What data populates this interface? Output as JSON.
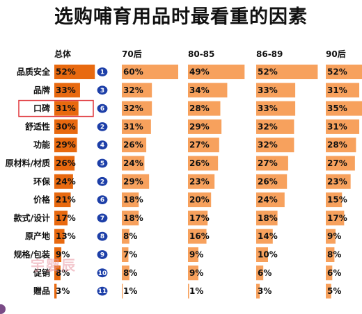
{
  "page": {
    "watermark": "宇婴辰",
    "colors": {
      "total_bar": "#e8690f",
      "group_bar": "#f7a15d",
      "rank_badge": "#1d3fa8",
      "highlight_border": "#e0373c"
    }
  },
  "chart_data": {
    "type": "bar",
    "title": "选购哺育用品时最看重的因素",
    "categories": [
      "品质安全",
      "品牌",
      "口碑",
      "舒适性",
      "功能",
      "原材料/材质",
      "环保",
      "价格",
      "款式/设计",
      "原产地",
      "规格/包装",
      "促销",
      "赠品"
    ],
    "highlighted_category": "口碑",
    "series": [
      {
        "name": "总体",
        "values": [
          52,
          33,
          31,
          30,
          29,
          26,
          24,
          21,
          17,
          13,
          9,
          8,
          3
        ]
      },
      {
        "name": "70后",
        "values": [
          60,
          32,
          32,
          31,
          26,
          24,
          29,
          18,
          18,
          8,
          7,
          8,
          1
        ]
      },
      {
        "name": "80-85",
        "values": [
          49,
          34,
          28,
          29,
          27,
          26,
          23,
          20,
          17,
          16,
          9,
          9,
          1
        ]
      },
      {
        "name": "86-89",
        "values": [
          52,
          33,
          33,
          32,
          32,
          27,
          26,
          24,
          18,
          14,
          10,
          6,
          3
        ]
      },
      {
        "name": "90后",
        "values": [
          52,
          31,
          35,
          31,
          28,
          27,
          23,
          15,
          17,
          9,
          8,
          6,
          5
        ]
      }
    ],
    "ranks": [
      1,
      3,
      6,
      2,
      4,
      5,
      2,
      6,
      7,
      8,
      9,
      10,
      11
    ],
    "unit": "%"
  }
}
